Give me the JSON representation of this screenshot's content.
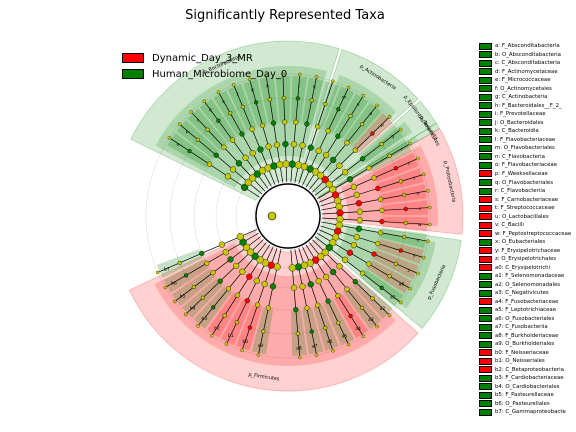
{
  "chart_data": {
    "type": "cladogram",
    "title": "Significantly Represented Taxa",
    "legend": {
      "placement": "top-left",
      "entries": [
        {
          "name": "Dynamic_Day_3_MR",
          "color": "#ff0000"
        },
        {
          "name": "Human_Microbiome_Day_0",
          "color": "#008000"
        }
      ]
    },
    "colors": {
      "group_fill_red": "#ff0000",
      "group_fill_green": "#008000",
      "nonsignificant_node": "#c8c800",
      "root_node": "#c8c800"
    },
    "clades": [
      {
        "name": "p_Bacteroidetes",
        "group": "green",
        "angle_from": -64,
        "angle_to": 17
      },
      {
        "name": "p_Actinobacteria",
        "group": "green",
        "angle_from": 18,
        "angle_to": 48
      },
      {
        "name": "p_Epsilonbacteraeota",
        "group": "green",
        "angle_from": 49,
        "angle_to": 58
      },
      {
        "name": "p_Firmicutes",
        "group": "red",
        "angle_from": 132,
        "angle_to": 245
      },
      {
        "name": "p_Fusobacteria",
        "group": "green",
        "angle_from": 98,
        "angle_to": 130
      },
      {
        "name": "p_Proteobacteria",
        "group": "red",
        "angle_from": 60,
        "angle_to": 96
      },
      {
        "name": "p_Tenericutes",
        "group": "green",
        "angle_from": 58,
        "angle_to": 60
      }
    ],
    "taxa": [
      {
        "key": "a",
        "label": "a: F_Absconditabacteria",
        "group": "green"
      },
      {
        "key": "b",
        "label": "b: O_Absconditabacteria",
        "group": "green"
      },
      {
        "key": "c",
        "label": "c: C_Absconditabacteria",
        "group": "green"
      },
      {
        "key": "d",
        "label": "d: F_Actinomycetaceae",
        "group": "green"
      },
      {
        "key": "e",
        "label": "e: F_Micrococcaceae",
        "group": "green"
      },
      {
        "key": "f",
        "label": "f: O_Actinomycetales",
        "group": "green"
      },
      {
        "key": "g",
        "label": "g: C_Actinobacteria",
        "group": "green"
      },
      {
        "key": "h",
        "label": "h: F_Bacteroidales__F_2_",
        "group": "green"
      },
      {
        "key": "i",
        "label": "i: F_Prevotellaceae",
        "group": "green"
      },
      {
        "key": "j",
        "label": "j: O_Bacteroidales",
        "group": "green"
      },
      {
        "key": "k",
        "label": "k: C_Bacteroidia",
        "group": "green"
      },
      {
        "key": "l",
        "label": "l: F_Flavobacteriaceae",
        "group": "green"
      },
      {
        "key": "m",
        "label": "m: O_Flavobacteriales",
        "group": "green"
      },
      {
        "key": "n",
        "label": "n: C_Flavobacteria",
        "group": "green"
      },
      {
        "key": "o",
        "label": "o: F_Flavobacteriaceae",
        "group": "green"
      },
      {
        "key": "p",
        "label": "p: F_Weeksellaceae",
        "group": "red"
      },
      {
        "key": "q",
        "label": "q: O_Flavobacteriales",
        "group": "green"
      },
      {
        "key": "r",
        "label": "r: C_Flavobacteriia",
        "group": "green"
      },
      {
        "key": "s",
        "label": "s: F_Carnobacteriaceae",
        "group": "red"
      },
      {
        "key": "t",
        "label": "t: F_Streptococcaceae",
        "group": "red"
      },
      {
        "key": "u",
        "label": "u: O_Lactobacillales",
        "group": "red"
      },
      {
        "key": "v",
        "label": "v: C_Bacilli",
        "group": "red"
      },
      {
        "key": "w",
        "label": "w: F_Peptostreptococcaceae",
        "group": "red"
      },
      {
        "key": "x",
        "label": "x: O_Eubacteriales",
        "group": "green"
      },
      {
        "key": "y",
        "label": "y: F_Erysipelotrichaceae",
        "group": "red"
      },
      {
        "key": "z",
        "label": "z: O_Erysipelotrichales",
        "group": "red"
      },
      {
        "key": "a0",
        "label": "a0: C_Erysipelotrichi",
        "group": "red"
      },
      {
        "key": "a1",
        "label": "a1: F_Selenomonadaceae",
        "group": "green"
      },
      {
        "key": "a2",
        "label": "a2: O_Selenomonadales",
        "group": "green"
      },
      {
        "key": "a3",
        "label": "a3: C_Negativicutes",
        "group": "green"
      },
      {
        "key": "a4",
        "label": "a4: F_Fusobacteriaceae",
        "group": "red"
      },
      {
        "key": "a5",
        "label": "a5: F_Leptotrichiaceae",
        "group": "green"
      },
      {
        "key": "a6",
        "label": "a6: O_Fusobacteriales",
        "group": "green"
      },
      {
        "key": "a7",
        "label": "a7: C_Fusobacteriia",
        "group": "green"
      },
      {
        "key": "a8",
        "label": "a8: F_Burkholderiaceae",
        "group": "green"
      },
      {
        "key": "a9",
        "label": "a9: O_Burkholderiales",
        "group": "green"
      },
      {
        "key": "b0",
        "label": "b0: F_Neisseriaceae",
        "group": "red"
      },
      {
        "key": "b1",
        "label": "b1: O_Neisseriales",
        "group": "red"
      },
      {
        "key": "b2",
        "label": "b2: C_Betaproteobacteria",
        "group": "red"
      },
      {
        "key": "b3",
        "label": "b3: F_Cardiobacteriaceae",
        "group": "green"
      },
      {
        "key": "b4",
        "label": "b4: O_Cardiobacteriales",
        "group": "green"
      },
      {
        "key": "b5",
        "label": "b5: F_Pasteurellaceae",
        "group": "green"
      },
      {
        "key": "b6",
        "label": "b6: O_Pasteurellales",
        "group": "green"
      },
      {
        "key": "b7",
        "label": "b7: C_Gammaproteobacte",
        "group": "green"
      }
    ]
  }
}
